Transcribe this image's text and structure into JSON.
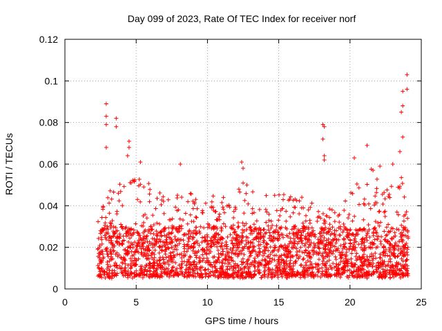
{
  "chart_data": {
    "type": "scatter",
    "title": "Day 099 of 2023, Rate Of TEC Index for receiver norf",
    "xlabel": "GPS time / hours",
    "ylabel": "ROTI / TECUs",
    "xlim": [
      0,
      25
    ],
    "ylim": [
      0,
      0.12
    ],
    "x_ticks": [
      0,
      5,
      10,
      15,
      20,
      25
    ],
    "x_tick_labels": [
      "0",
      "5",
      "10",
      "15",
      "20",
      "25"
    ],
    "y_ticks": [
      0,
      0.02,
      0.04,
      0.06,
      0.08,
      0.1,
      0.12
    ],
    "y_tick_labels": [
      "0",
      "0.02",
      "0.04",
      "0.06",
      "0.08",
      "0.1",
      "0.12"
    ],
    "grid": true,
    "marker": "plus",
    "color": "#ff0000",
    "x_range_of_data": [
      2.3,
      24.1
    ],
    "notable_points": [
      {
        "x": 2.9,
        "y": 0.089
      },
      {
        "x": 2.9,
        "y": 0.083
      },
      {
        "x": 2.9,
        "y": 0.079
      },
      {
        "x": 3.6,
        "y": 0.082
      },
      {
        "x": 3.6,
        "y": 0.078
      },
      {
        "x": 2.9,
        "y": 0.068
      },
      {
        "x": 4.5,
        "y": 0.071
      },
      {
        "x": 4.5,
        "y": 0.068
      },
      {
        "x": 4.4,
        "y": 0.064
      },
      {
        "x": 5.3,
        "y": 0.061
      },
      {
        "x": 8.1,
        "y": 0.06
      },
      {
        "x": 12.4,
        "y": 0.061
      },
      {
        "x": 12.5,
        "y": 0.058
      },
      {
        "x": 18.1,
        "y": 0.079
      },
      {
        "x": 18.2,
        "y": 0.078
      },
      {
        "x": 18.1,
        "y": 0.072
      },
      {
        "x": 18.2,
        "y": 0.064
      },
      {
        "x": 18.2,
        "y": 0.062
      },
      {
        "x": 20.3,
        "y": 0.063
      },
      {
        "x": 21.2,
        "y": 0.069
      },
      {
        "x": 22.1,
        "y": 0.059
      },
      {
        "x": 23.0,
        "y": 0.06
      },
      {
        "x": 23.6,
        "y": 0.085
      },
      {
        "x": 23.7,
        "y": 0.088
      },
      {
        "x": 23.7,
        "y": 0.095
      },
      {
        "x": 24.0,
        "y": 0.096
      },
      {
        "x": 24.0,
        "y": 0.103
      },
      {
        "x": 23.7,
        "y": 0.073
      },
      {
        "x": 23.5,
        "y": 0.066
      }
    ],
    "bulk_distribution": {
      "baseline_min": 0.003,
      "typical_range": [
        0.005,
        0.03
      ],
      "envelope": [
        {
          "x": 2.5,
          "y": 0.045
        },
        {
          "x": 3.5,
          "y": 0.05
        },
        {
          "x": 4.5,
          "y": 0.055
        },
        {
          "x": 5.5,
          "y": 0.055
        },
        {
          "x": 6.5,
          "y": 0.048
        },
        {
          "x": 7.5,
          "y": 0.045
        },
        {
          "x": 8.5,
          "y": 0.05
        },
        {
          "x": 9.5,
          "y": 0.048
        },
        {
          "x": 10.5,
          "y": 0.045
        },
        {
          "x": 11.5,
          "y": 0.045
        },
        {
          "x": 12.5,
          "y": 0.052
        },
        {
          "x": 13.5,
          "y": 0.046
        },
        {
          "x": 14.5,
          "y": 0.045
        },
        {
          "x": 15.5,
          "y": 0.046
        },
        {
          "x": 16.5,
          "y": 0.044
        },
        {
          "x": 17.5,
          "y": 0.04
        },
        {
          "x": 18.5,
          "y": 0.038
        },
        {
          "x": 19.5,
          "y": 0.04
        },
        {
          "x": 20.5,
          "y": 0.052
        },
        {
          "x": 21.5,
          "y": 0.058
        },
        {
          "x": 22.5,
          "y": 0.048
        },
        {
          "x": 23.5,
          "y": 0.055
        },
        {
          "x": 24.0,
          "y": 0.05
        }
      ]
    }
  }
}
